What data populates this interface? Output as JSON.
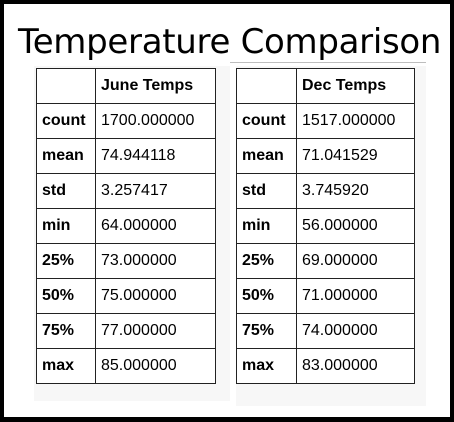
{
  "title": "Temperature Comparison",
  "tables": [
    {
      "corner": "",
      "header": "June Temps",
      "rows": [
        {
          "label": "count",
          "value": "1700.000000"
        },
        {
          "label": "mean",
          "value": "74.944118"
        },
        {
          "label": "std",
          "value": "3.257417"
        },
        {
          "label": "min",
          "value": "64.000000"
        },
        {
          "label": "25%",
          "value": "73.000000"
        },
        {
          "label": "50%",
          "value": "75.000000"
        },
        {
          "label": "75%",
          "value": "77.000000"
        },
        {
          "label": "max",
          "value": "85.000000"
        }
      ]
    },
    {
      "corner": "",
      "header": "Dec Temps",
      "rows": [
        {
          "label": "count",
          "value": "1517.000000"
        },
        {
          "label": "mean",
          "value": "71.041529"
        },
        {
          "label": "std",
          "value": "3.745920"
        },
        {
          "label": "min",
          "value": "56.000000"
        },
        {
          "label": "25%",
          "value": "69.000000"
        },
        {
          "label": "50%",
          "value": "71.000000"
        },
        {
          "label": "75%",
          "value": "74.000000"
        },
        {
          "label": "max",
          "value": "83.000000"
        }
      ]
    }
  ]
}
